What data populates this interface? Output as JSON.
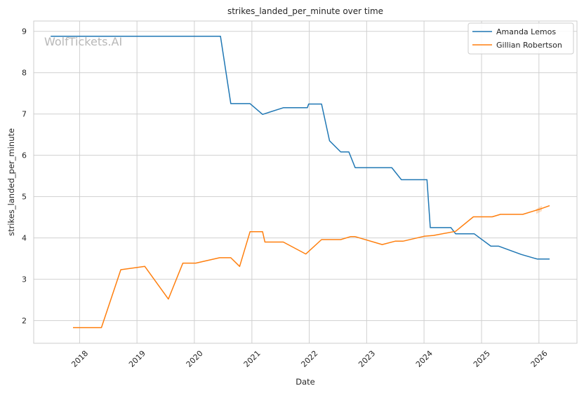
{
  "watermark": "WolfTickets.AI",
  "colors": {
    "amanda": "#1f77b4",
    "gillian": "#ff7f0e",
    "grid": "#d0d0d0",
    "spine": "#cccccc"
  },
  "chart_data": {
    "type": "line",
    "title": "strikes_landed_per_minute over time",
    "xlabel": "Date",
    "ylabel": "strikes_landed_per_minute",
    "xlim": [
      "2017-03-15",
      "2026-08-31"
    ],
    "ylim": [
      1.45,
      9.25
    ],
    "x_ticks": [
      "2018-01-01",
      "2019-01-01",
      "2020-01-01",
      "2021-01-01",
      "2022-01-01",
      "2023-01-01",
      "2024-01-01",
      "2025-01-01",
      "2026-01-01"
    ],
    "x_tick_labels": [
      "2018",
      "2019",
      "2020",
      "2021",
      "2022",
      "2023",
      "2024",
      "2025",
      "2026"
    ],
    "y_ticks": [
      2,
      3,
      4,
      5,
      6,
      7,
      8,
      9
    ],
    "grid": true,
    "legend_position": "top-right",
    "series": [
      {
        "name": "Amanda Lemos",
        "color": "#1f77b4",
        "points": [
          [
            "2017-07-01",
            8.88
          ],
          [
            "2020-06-15",
            8.88
          ],
          [
            "2020-08-20",
            7.25
          ],
          [
            "2020-12-20",
            7.25
          ],
          [
            "2021-03-10",
            6.99
          ],
          [
            "2021-07-20",
            7.15
          ],
          [
            "2021-12-20",
            7.15
          ],
          [
            "2021-12-28",
            7.24
          ],
          [
            "2022-03-20",
            7.24
          ],
          [
            "2022-05-10",
            6.35
          ],
          [
            "2022-07-20",
            6.08
          ],
          [
            "2022-09-10",
            6.08
          ],
          [
            "2022-10-20",
            5.7
          ],
          [
            "2023-06-10",
            5.7
          ],
          [
            "2023-08-10",
            5.41
          ],
          [
            "2024-01-20",
            5.41
          ],
          [
            "2024-02-10",
            4.25
          ],
          [
            "2024-06-20",
            4.25
          ],
          [
            "2024-07-20",
            4.1
          ],
          [
            "2024-11-15",
            4.1
          ],
          [
            "2025-03-01",
            3.8
          ],
          [
            "2025-04-20",
            3.8
          ],
          [
            "2025-09-10",
            3.6
          ],
          [
            "2025-12-20",
            3.49
          ],
          [
            "2026-03-10",
            3.49
          ]
        ]
      },
      {
        "name": "Gillian Robertson",
        "color": "#ff7f0e",
        "points": [
          [
            "2017-11-20",
            1.83
          ],
          [
            "2018-05-20",
            1.83
          ],
          [
            "2018-09-20",
            3.23
          ],
          [
            "2019-02-20",
            3.31
          ],
          [
            "2019-07-20",
            2.52
          ],
          [
            "2019-10-20",
            3.39
          ],
          [
            "2020-01-10",
            3.39
          ],
          [
            "2020-06-10",
            3.52
          ],
          [
            "2020-08-20",
            3.52
          ],
          [
            "2020-10-15",
            3.31
          ],
          [
            "2020-12-20",
            4.15
          ],
          [
            "2021-03-10",
            4.15
          ],
          [
            "2021-03-25",
            3.9
          ],
          [
            "2021-07-20",
            3.9
          ],
          [
            "2021-12-10",
            3.61
          ],
          [
            "2022-03-20",
            3.96
          ],
          [
            "2022-07-20",
            3.96
          ],
          [
            "2022-09-20",
            4.03
          ],
          [
            "2022-10-20",
            4.03
          ],
          [
            "2023-04-10",
            3.84
          ],
          [
            "2023-07-01",
            3.92
          ],
          [
            "2023-08-20",
            3.92
          ],
          [
            "2024-01-01",
            4.04
          ],
          [
            "2024-03-01",
            4.06
          ],
          [
            "2024-07-20",
            4.16
          ],
          [
            "2024-11-10",
            4.51
          ],
          [
            "2025-03-10",
            4.51
          ],
          [
            "2025-05-01",
            4.57
          ],
          [
            "2025-09-20",
            4.57
          ],
          [
            "2026-01-10",
            4.7
          ],
          [
            "2026-03-10",
            4.78
          ]
        ],
        "band": {
          "x": [
            "2025-12-15",
            "2026-01-20"
          ],
          "y_low": [
            4.58,
            4.65
          ],
          "y_high": [
            4.7,
            4.78
          ]
        }
      }
    ]
  }
}
